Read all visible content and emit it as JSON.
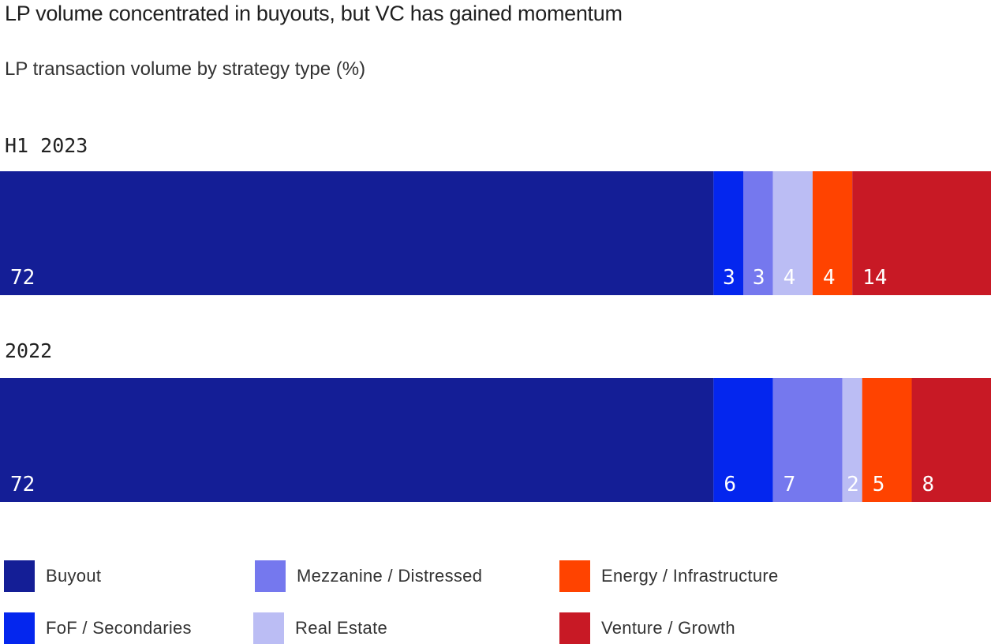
{
  "title": "LP volume concentrated in buyouts, but VC has gained momentum",
  "subtitle": "LP transaction volume by strategy type (%)",
  "colors": {
    "Buyout": "#141e96",
    "FoF / Secondaries": "#0426ee",
    "Mezzanine / Distressed": "#7578ee",
    "Real Estate": "#bbbdf4",
    "Energy / Infrastructure": "#ff4300",
    "Venture / Growth": "#c81925"
  },
  "chart_data": {
    "type": "bar",
    "orientation": "horizontal",
    "stacked": true,
    "categories": [
      "H1 2023",
      "2022"
    ],
    "unit": "%",
    "series": [
      {
        "name": "Buyout",
        "values": [
          72,
          72
        ]
      },
      {
        "name": "FoF / Secondaries",
        "values": [
          3,
          6
        ]
      },
      {
        "name": "Mezzanine / Distressed",
        "values": [
          3,
          7
        ]
      },
      {
        "name": "Real Estate",
        "values": [
          4,
          2
        ]
      },
      {
        "name": "Energy / Infrastructure",
        "values": [
          4,
          5
        ]
      },
      {
        "name": "Venture / Growth",
        "values": [
          14,
          8
        ]
      }
    ],
    "title": "LP volume concentrated in buyouts, but VC has gained momentum",
    "subtitle": "LP transaction volume by strategy type (%)",
    "legend": [
      "Buyout",
      "Mezzanine / Distressed",
      "Energy / Infrastructure",
      "FoF / Secondaries",
      "Real Estate",
      "Venture / Growth"
    ],
    "legend_position": "bottom"
  }
}
